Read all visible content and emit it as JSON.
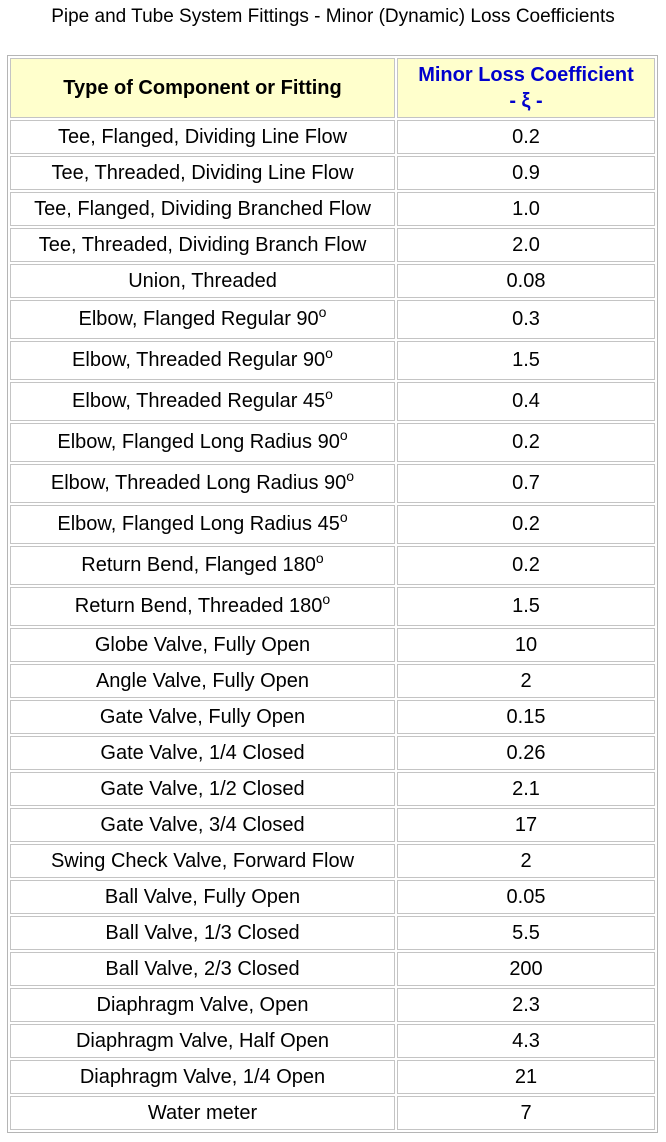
{
  "title": "Pipe and Tube System Fittings - Minor (Dynamic) Loss Coefficients",
  "table": {
    "headers": {
      "component": "Type of Component or Fitting",
      "coefficient": "Minor Loss Coefficient",
      "coefficient_symbol": "- ξ -"
    },
    "rows": [
      {
        "name": "Tee, Flanged, Dividing Line Flow",
        "deg": "",
        "value": "0.2"
      },
      {
        "name": "Tee, Threaded, Dividing Line Flow",
        "deg": "",
        "value": "0.9"
      },
      {
        "name": "Tee, Flanged, Dividing Branched Flow",
        "deg": "",
        "value": "1.0"
      },
      {
        "name": "Tee, Threaded, Dividing Branch Flow",
        "deg": "",
        "value": "2.0"
      },
      {
        "name": "Union, Threaded",
        "deg": "",
        "value": "0.08"
      },
      {
        "name": "Elbow, Flanged Regular 90",
        "deg": "o",
        "value": "0.3"
      },
      {
        "name": "Elbow, Threaded Regular 90",
        "deg": "o",
        "value": "1.5"
      },
      {
        "name": "Elbow, Threaded Regular 45",
        "deg": "o",
        "value": "0.4"
      },
      {
        "name": "Elbow, Flanged Long Radius 90",
        "deg": "o",
        "value": "0.2"
      },
      {
        "name": "Elbow, Threaded Long Radius 90",
        "deg": "o",
        "value": "0.7"
      },
      {
        "name": "Elbow, Flanged Long Radius 45",
        "deg": "o",
        "value": "0.2"
      },
      {
        "name": "Return Bend, Flanged 180",
        "deg": "o",
        "value": "0.2"
      },
      {
        "name": "Return Bend, Threaded 180",
        "deg": "o",
        "value": "1.5"
      },
      {
        "name": "Globe Valve, Fully Open",
        "deg": "",
        "value": "10"
      },
      {
        "name": "Angle Valve, Fully Open",
        "deg": "",
        "value": "2"
      },
      {
        "name": "Gate Valve, Fully Open",
        "deg": "",
        "value": "0.15"
      },
      {
        "name": "Gate Valve, 1/4 Closed",
        "deg": "",
        "value": "0.26"
      },
      {
        "name": "Gate Valve, 1/2 Closed",
        "deg": "",
        "value": "2.1"
      },
      {
        "name": "Gate Valve, 3/4 Closed",
        "deg": "",
        "value": "17"
      },
      {
        "name": "Swing Check Valve, Forward Flow",
        "deg": "",
        "value": "2"
      },
      {
        "name": "Ball Valve, Fully Open",
        "deg": "",
        "value": "0.05"
      },
      {
        "name": "Ball Valve, 1/3 Closed",
        "deg": "",
        "value": "5.5"
      },
      {
        "name": "Ball Valve, 2/3 Closed",
        "deg": "",
        "value": "200"
      },
      {
        "name": "Diaphragm Valve, Open",
        "deg": "",
        "value": "2.3"
      },
      {
        "name": "Diaphragm Valve, Half Open",
        "deg": "",
        "value": "4.3"
      },
      {
        "name": "Diaphragm Valve, 1/4 Open",
        "deg": "",
        "value": "21"
      },
      {
        "name": "Water meter",
        "deg": "",
        "value": "7"
      }
    ]
  }
}
